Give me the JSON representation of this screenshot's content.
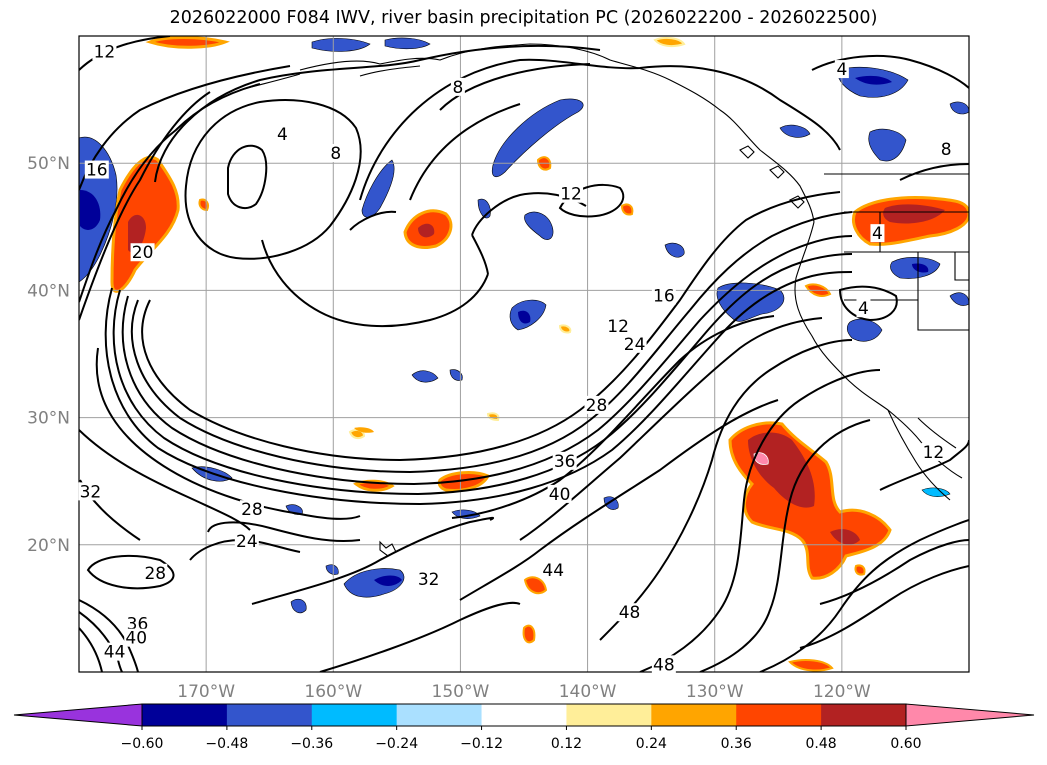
{
  "title": "2026022000 F084 IWV, river basin precipitation PC (2026022200 - 2026022500)",
  "colors": {
    "gridline": "#a0a0a0",
    "tick_text": "#808080",
    "coast": "#000000",
    "contour": "#000000"
  },
  "map": {
    "lon_range": [
      -180,
      -110
    ],
    "lat_range": [
      10,
      60
    ],
    "lat_ticks": [
      {
        "value": 50,
        "label": "50°N"
      },
      {
        "value": 40,
        "label": "40°N"
      },
      {
        "value": 30,
        "label": "30°N"
      },
      {
        "value": 20,
        "label": "20°N"
      }
    ],
    "lon_ticks": [
      {
        "value": -170,
        "label": "170°W"
      },
      {
        "value": -160,
        "label": "160°W"
      },
      {
        "value": -150,
        "label": "150°W"
      },
      {
        "value": -140,
        "label": "140°W"
      },
      {
        "value": -130,
        "label": "130°W"
      },
      {
        "value": -120,
        "label": "120°W"
      }
    ]
  },
  "iwv_contour_labels": [
    {
      "text": "12",
      "lon": -178,
      "lat": 58.8
    },
    {
      "text": "4",
      "lon": -164,
      "lat": 52.3
    },
    {
      "text": "8",
      "lon": -159.8,
      "lat": 50.8
    },
    {
      "text": "8",
      "lon": -150.2,
      "lat": 56.0
    },
    {
      "text": "16",
      "lon": -178.6,
      "lat": 49.5
    },
    {
      "text": "20",
      "lon": -175,
      "lat": 43.0
    },
    {
      "text": "12",
      "lon": -141.3,
      "lat": 47.6
    },
    {
      "text": "16",
      "lon": -134,
      "lat": 39.6
    },
    {
      "text": "12",
      "lon": -137.6,
      "lat": 37.2
    },
    {
      "text": "24",
      "lon": -136.3,
      "lat": 35.8
    },
    {
      "text": "28",
      "lon": -139.3,
      "lat": 31.0
    },
    {
      "text": "36",
      "lon": -141.8,
      "lat": 26.6
    },
    {
      "text": "40",
      "lon": -142.2,
      "lat": 24.0
    },
    {
      "text": "28",
      "lon": -166.4,
      "lat": 22.8
    },
    {
      "text": "24",
      "lon": -166.8,
      "lat": 20.3
    },
    {
      "text": "28",
      "lon": -174,
      "lat": 17.8
    },
    {
      "text": "32",
      "lon": -179.1,
      "lat": 24.2
    },
    {
      "text": "32",
      "lon": -152.5,
      "lat": 17.3
    },
    {
      "text": "44",
      "lon": -142.7,
      "lat": 18.0
    },
    {
      "text": "48",
      "lon": -136.7,
      "lat": 14.7
    },
    {
      "text": "48",
      "lon": -134.0,
      "lat": 10.6
    },
    {
      "text": "36",
      "lon": -175.4,
      "lat": 13.8
    },
    {
      "text": "40",
      "lon": -175.5,
      "lat": 12.7
    },
    {
      "text": "44",
      "lon": -177.2,
      "lat": 11.6
    },
    {
      "text": "4",
      "lon": -120.0,
      "lat": 57.4
    },
    {
      "text": "8",
      "lon": -111.8,
      "lat": 51.1
    },
    {
      "text": "4",
      "lon": -117.2,
      "lat": 44.5
    },
    {
      "text": "4",
      "lon": -118.3,
      "lat": 38.6
    },
    {
      "text": "12",
      "lon": -112.8,
      "lat": 27.3
    }
  ],
  "colorbar": {
    "ticks": [
      "−0.60",
      "−0.48",
      "−0.36",
      "−0.24",
      "−0.12",
      "0.12",
      "0.24",
      "0.36",
      "0.48",
      "0.60"
    ],
    "colors": [
      "#9933dd",
      "#000099",
      "#3355cc",
      "#00bbff",
      "#aae0ff",
      "#ffffff",
      "#ffee99",
      "#ffa500",
      "#ff4500",
      "#b22222",
      "#ff88aa"
    ]
  }
}
